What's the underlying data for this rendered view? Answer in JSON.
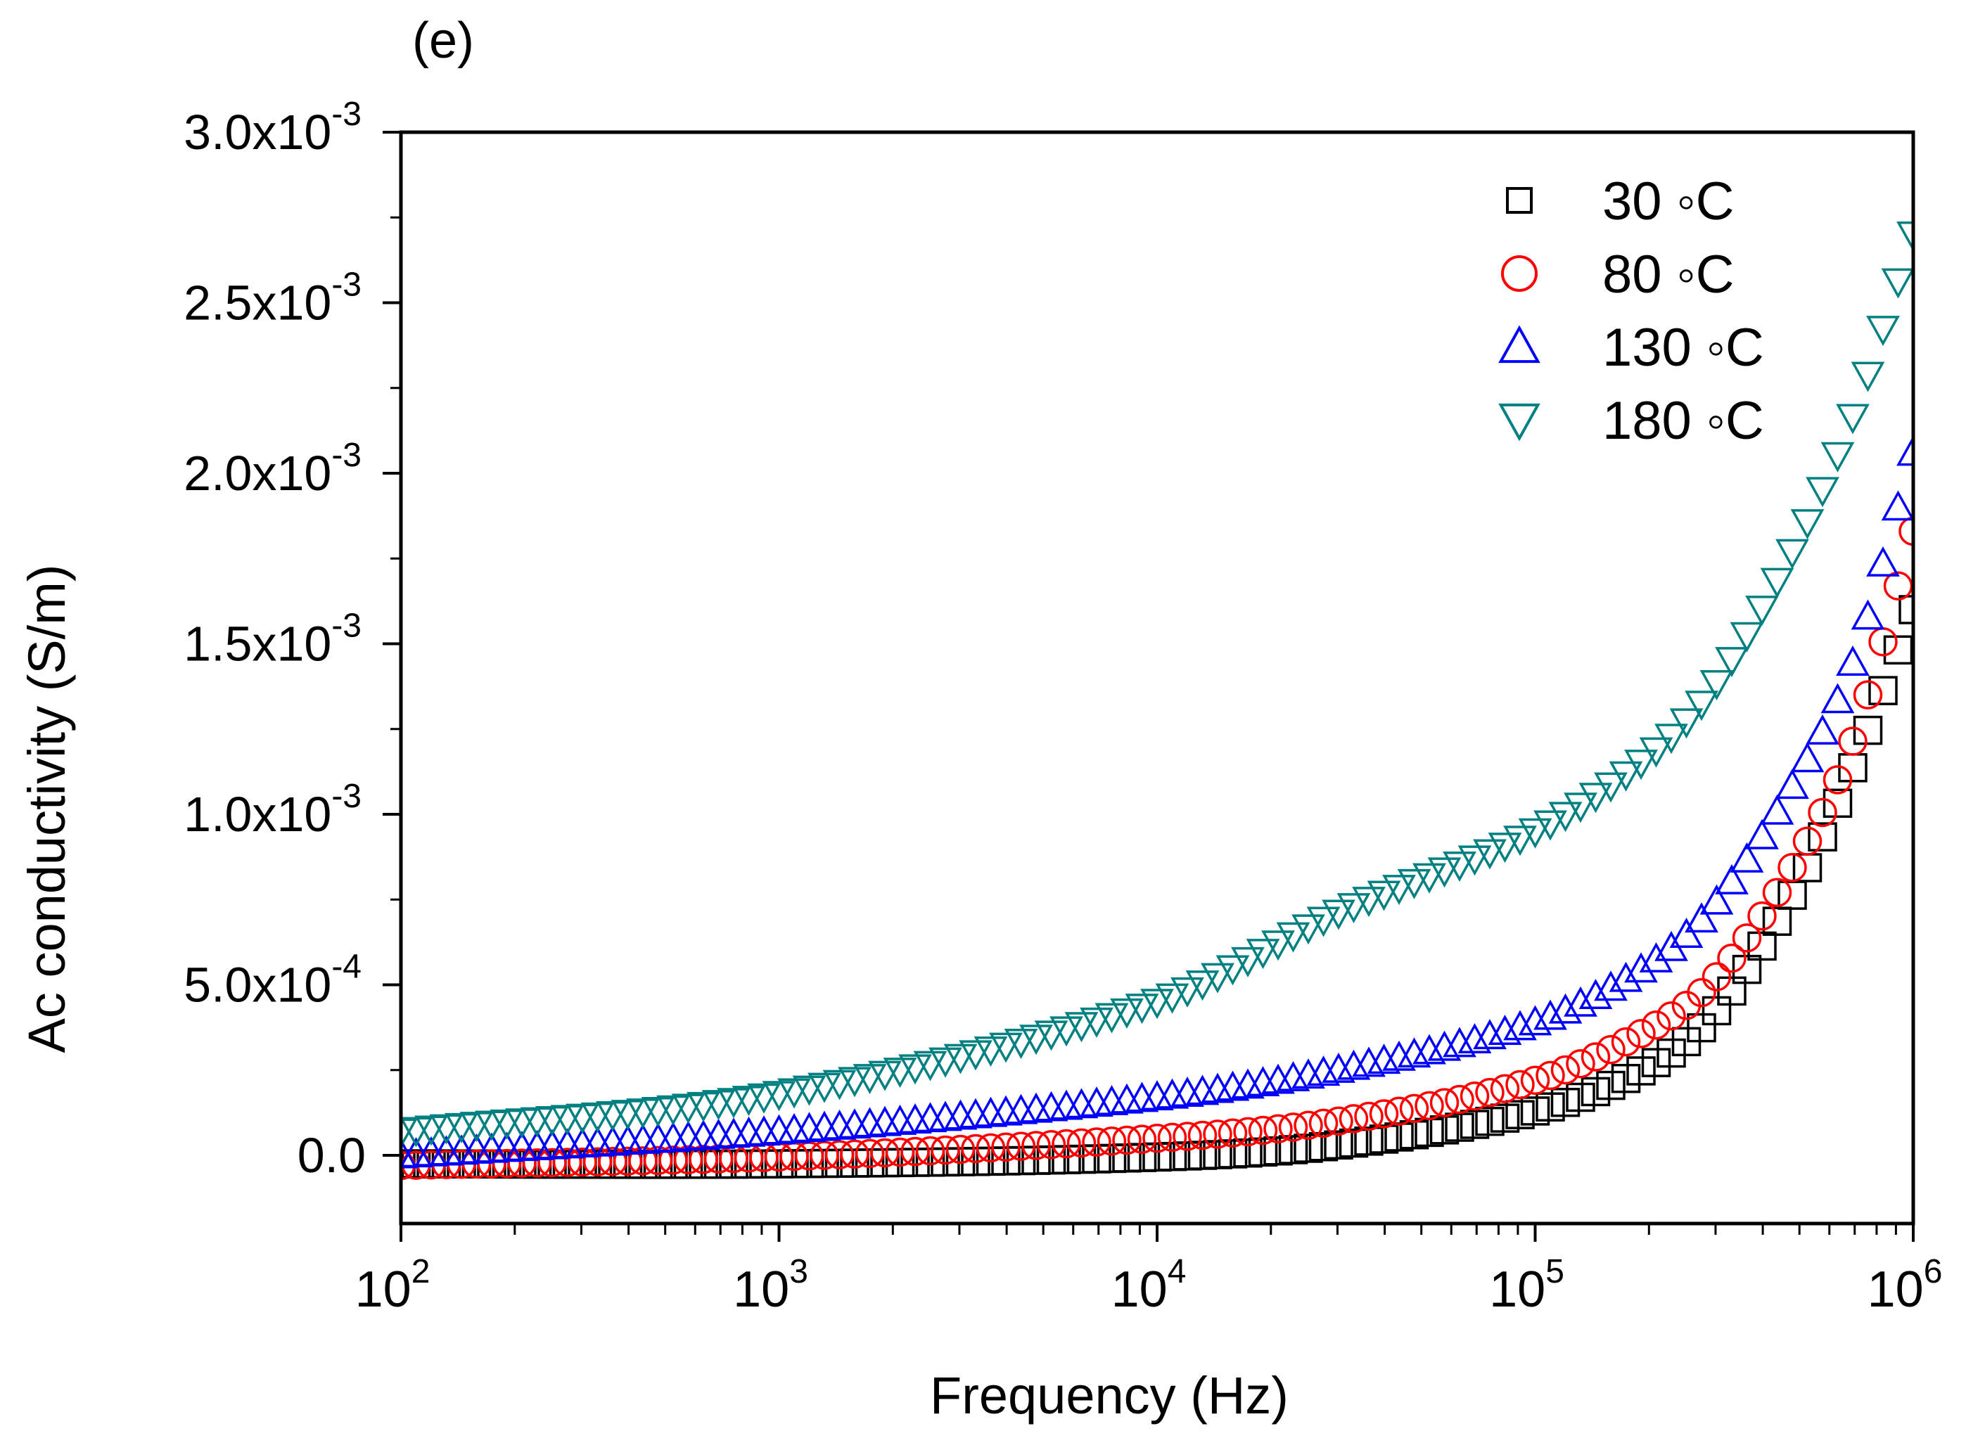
{
  "panel_label": "(e)",
  "chart_data": {
    "type": "scatter",
    "title": "",
    "xlabel": "Frequency (Hz)",
    "ylabel": "Ac conductivity (S/m)",
    "x_scale": "log",
    "xlim": [
      100,
      1000000
    ],
    "ylim": [
      -0.0002,
      0.003
    ],
    "x_ticks": [
      {
        "base": "10",
        "exp": "2"
      },
      {
        "base": "10",
        "exp": "3"
      },
      {
        "base": "10",
        "exp": "4"
      },
      {
        "base": "10",
        "exp": "5"
      },
      {
        "base": "10",
        "exp": "6"
      }
    ],
    "y_ticks": [
      {
        "value": 0,
        "mant": "0.0",
        "exp": ""
      },
      {
        "value": 0.0005,
        "mant": "5.0x10",
        "exp": "-4"
      },
      {
        "value": 0.001,
        "mant": "1.0x10",
        "exp": "-3"
      },
      {
        "value": 0.0015,
        "mant": "1.5x10",
        "exp": "-3"
      },
      {
        "value": 0.002,
        "mant": "2.0x10",
        "exp": "-3"
      },
      {
        "value": 0.0025,
        "mant": "2.5x10",
        "exp": "-3"
      },
      {
        "value": 0.003,
        "mant": "3.0x10",
        "exp": "-3"
      }
    ],
    "legend_position": "top-right",
    "points_per_decade": 25,
    "series": [
      {
        "name": "30 ◦C",
        "marker": "square",
        "color": "#000000",
        "x": [
          100,
          1000,
          10000,
          30000,
          100000,
          200000,
          300000,
          500000,
          700000,
          1000000
        ],
        "y": [
          -2.5e-05,
          -2.5e-05,
          -5e-06,
          3e-05,
          0.00013,
          0.00026,
          0.00042,
          0.0008,
          0.00115,
          0.0016
        ]
      },
      {
        "name": "80 ◦C",
        "marker": "circle",
        "color": "#ff0000",
        "x": [
          100,
          1000,
          10000,
          30000,
          100000,
          200000,
          300000,
          500000,
          700000,
          1000000
        ],
        "y": [
          -3e-05,
          -5e-06,
          5e-05,
          0.0001,
          0.00022,
          0.00037,
          0.00052,
          0.00088,
          0.00123,
          0.00183
        ]
      },
      {
        "name": "130 ◦C",
        "marker": "triangle-up",
        "color": "#0000ff",
        "x": [
          100,
          1000,
          10000,
          30000,
          100000,
          200000,
          300000,
          500000,
          700000,
          1000000
        ],
        "y": [
          0.0,
          7e-05,
          0.00017,
          0.00025,
          0.00039,
          0.00056,
          0.00074,
          0.00112,
          0.00146,
          0.00206
        ]
      },
      {
        "name": "180 ◦C",
        "marker": "triangle-down",
        "color": "#008080",
        "x": [
          100,
          1000,
          10000,
          30000,
          100000,
          200000,
          300000,
          500000,
          700000,
          1000000
        ],
        "y": [
          7e-05,
          0.00018,
          0.00045,
          0.00071,
          0.00095,
          0.00117,
          0.00138,
          0.00181,
          0.00218,
          0.0027
        ]
      }
    ]
  }
}
